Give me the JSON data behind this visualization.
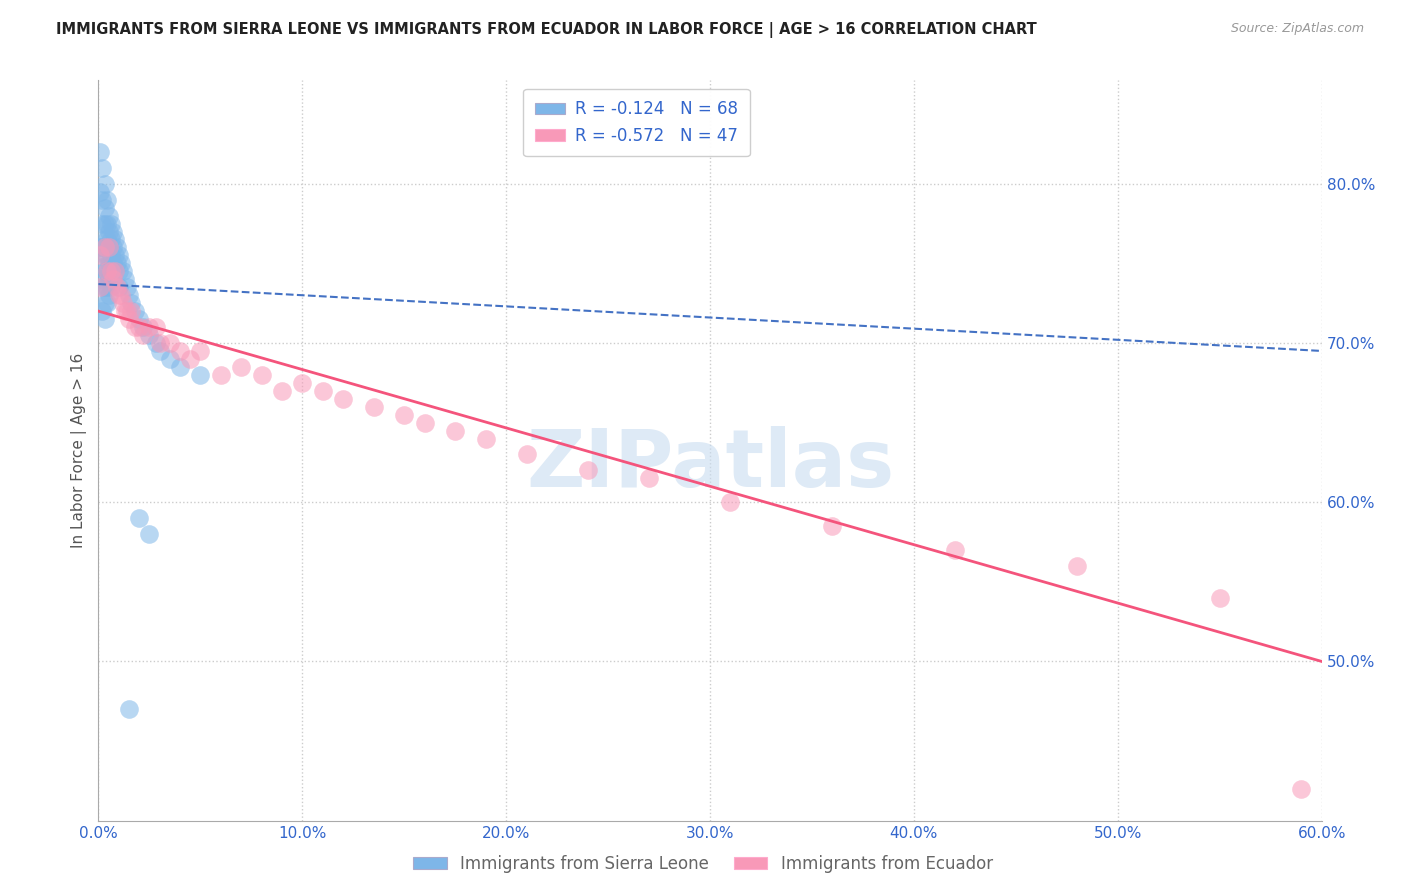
{
  "title": "IMMIGRANTS FROM SIERRA LEONE VS IMMIGRANTS FROM ECUADOR IN LABOR FORCE | AGE > 16 CORRELATION CHART",
  "source": "Source: ZipAtlas.com",
  "ylabel": "In Labor Force | Age > 16",
  "x_lim": [
    0.0,
    0.6
  ],
  "y_lim": [
    0.4,
    0.865
  ],
  "legend_r1": "-0.124",
  "legend_n1": "68",
  "legend_r2": "-0.572",
  "legend_n2": "47",
  "color_blue": "#7EB6E8",
  "color_pink": "#F899B8",
  "color_blue_line": "#4472C4",
  "color_pink_line": "#F4547C",
  "color_blue_text": "#3366CC",
  "grid_color": "#CCCCCC",
  "background_color": "#FFFFFF",
  "watermark_text": "ZIPatlas",
  "watermark_color": "#C8DCF0",
  "legend_bottom": [
    "Immigrants from Sierra Leone",
    "Immigrants from Ecuador"
  ],
  "sierra_leone_x": [
    0.001,
    0.001,
    0.001,
    0.001,
    0.002,
    0.002,
    0.002,
    0.002,
    0.002,
    0.002,
    0.002,
    0.003,
    0.003,
    0.003,
    0.003,
    0.003,
    0.003,
    0.003,
    0.003,
    0.003,
    0.004,
    0.004,
    0.004,
    0.004,
    0.004,
    0.004,
    0.004,
    0.005,
    0.005,
    0.005,
    0.005,
    0.005,
    0.005,
    0.006,
    0.006,
    0.006,
    0.006,
    0.006,
    0.007,
    0.007,
    0.007,
    0.007,
    0.008,
    0.008,
    0.008,
    0.009,
    0.009,
    0.01,
    0.01,
    0.01,
    0.011,
    0.012,
    0.013,
    0.014,
    0.015,
    0.016,
    0.018,
    0.02,
    0.022,
    0.025,
    0.028,
    0.03,
    0.035,
    0.04,
    0.05,
    0.02,
    0.025,
    0.015
  ],
  "sierra_leone_y": [
    0.82,
    0.795,
    0.76,
    0.74,
    0.81,
    0.79,
    0.775,
    0.76,
    0.748,
    0.735,
    0.72,
    0.8,
    0.785,
    0.775,
    0.765,
    0.755,
    0.745,
    0.735,
    0.725,
    0.715,
    0.79,
    0.775,
    0.765,
    0.755,
    0.745,
    0.735,
    0.725,
    0.78,
    0.77,
    0.76,
    0.75,
    0.74,
    0.73,
    0.775,
    0.765,
    0.755,
    0.745,
    0.735,
    0.77,
    0.76,
    0.75,
    0.74,
    0.765,
    0.755,
    0.745,
    0.76,
    0.75,
    0.755,
    0.745,
    0.735,
    0.75,
    0.745,
    0.74,
    0.735,
    0.73,
    0.725,
    0.72,
    0.715,
    0.71,
    0.705,
    0.7,
    0.695,
    0.69,
    0.685,
    0.68,
    0.59,
    0.58,
    0.47
  ],
  "ecuador_x": [
    0.001,
    0.001,
    0.003,
    0.004,
    0.005,
    0.006,
    0.007,
    0.008,
    0.009,
    0.01,
    0.011,
    0.012,
    0.013,
    0.014,
    0.015,
    0.016,
    0.018,
    0.02,
    0.022,
    0.025,
    0.028,
    0.03,
    0.035,
    0.04,
    0.045,
    0.05,
    0.06,
    0.07,
    0.08,
    0.09,
    0.1,
    0.11,
    0.12,
    0.135,
    0.15,
    0.16,
    0.175,
    0.19,
    0.21,
    0.24,
    0.27,
    0.31,
    0.36,
    0.42,
    0.48,
    0.55,
    0.59
  ],
  "ecuador_y": [
    0.755,
    0.735,
    0.76,
    0.745,
    0.76,
    0.745,
    0.74,
    0.745,
    0.735,
    0.73,
    0.73,
    0.725,
    0.72,
    0.72,
    0.715,
    0.72,
    0.71,
    0.71,
    0.705,
    0.71,
    0.71,
    0.7,
    0.7,
    0.695,
    0.69,
    0.695,
    0.68,
    0.685,
    0.68,
    0.67,
    0.675,
    0.67,
    0.665,
    0.66,
    0.655,
    0.65,
    0.645,
    0.64,
    0.63,
    0.62,
    0.615,
    0.6,
    0.585,
    0.57,
    0.56,
    0.54,
    0.42
  ]
}
